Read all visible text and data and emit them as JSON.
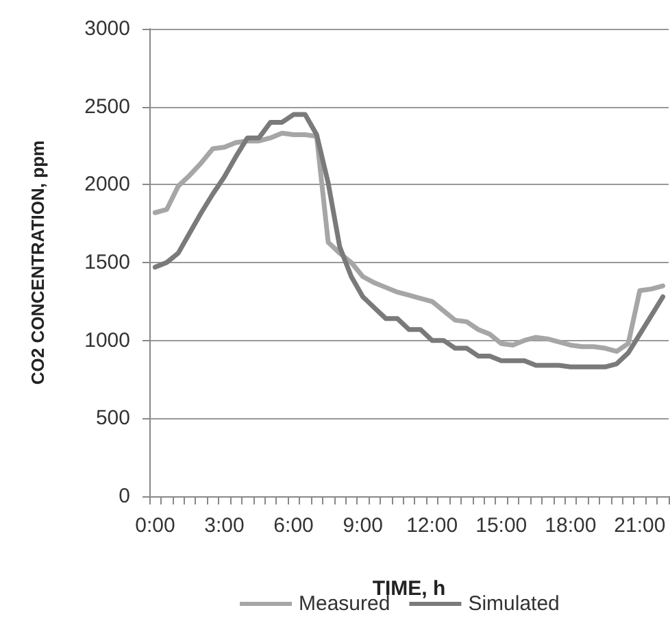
{
  "chart_data": {
    "type": "line",
    "xlabel": "TIME, h",
    "ylabel": "CO2 CONCENTRATION, ppm",
    "categories": [
      "0:00",
      null,
      null,
      null,
      null,
      null,
      "3:00",
      null,
      null,
      null,
      null,
      null,
      "6:00",
      null,
      null,
      null,
      null,
      null,
      "9:00",
      null,
      null,
      null,
      null,
      null,
      "12:00",
      null,
      null,
      null,
      null,
      null,
      "15:00",
      null,
      null,
      null,
      null,
      null,
      "18:00",
      null,
      null,
      null,
      null,
      null,
      "21:00",
      null,
      null
    ],
    "series": [
      {
        "name": "Measured",
        "color": "#a6a6a6",
        "values": [
          1820,
          1840,
          1990,
          2060,
          2140,
          2230,
          2240,
          2270,
          2280,
          2280,
          2300,
          2330,
          2320,
          2320,
          2310,
          1630,
          1560,
          1500,
          1410,
          1370,
          1340,
          1310,
          1290,
          1270,
          1250,
          1190,
          1130,
          1120,
          1070,
          1040,
          980,
          970,
          1000,
          1020,
          1010,
          990,
          970,
          960,
          960,
          950,
          930,
          980,
          1320,
          1330,
          1350
        ]
      },
      {
        "name": "Simulated",
        "color": "#7a7a7a",
        "values": [
          1470,
          1500,
          1560,
          1690,
          1820,
          1940,
          2050,
          2180,
          2300,
          2300,
          2400,
          2400,
          2450,
          2450,
          2320,
          2010,
          1600,
          1410,
          1280,
          1210,
          1140,
          1140,
          1070,
          1070,
          1000,
          1000,
          950,
          950,
          900,
          900,
          870,
          870,
          870,
          840,
          840,
          840,
          830,
          830,
          830,
          830,
          850,
          920,
          1040,
          1160,
          1280
        ]
      }
    ],
    "ylim": [
      0,
      3000
    ],
    "yticks": [
      0,
      500,
      1000,
      1500,
      2000,
      2500,
      3000
    ],
    "grid": "y",
    "legend": "bottom",
    "marker": "none",
    "line_style": "solid"
  }
}
